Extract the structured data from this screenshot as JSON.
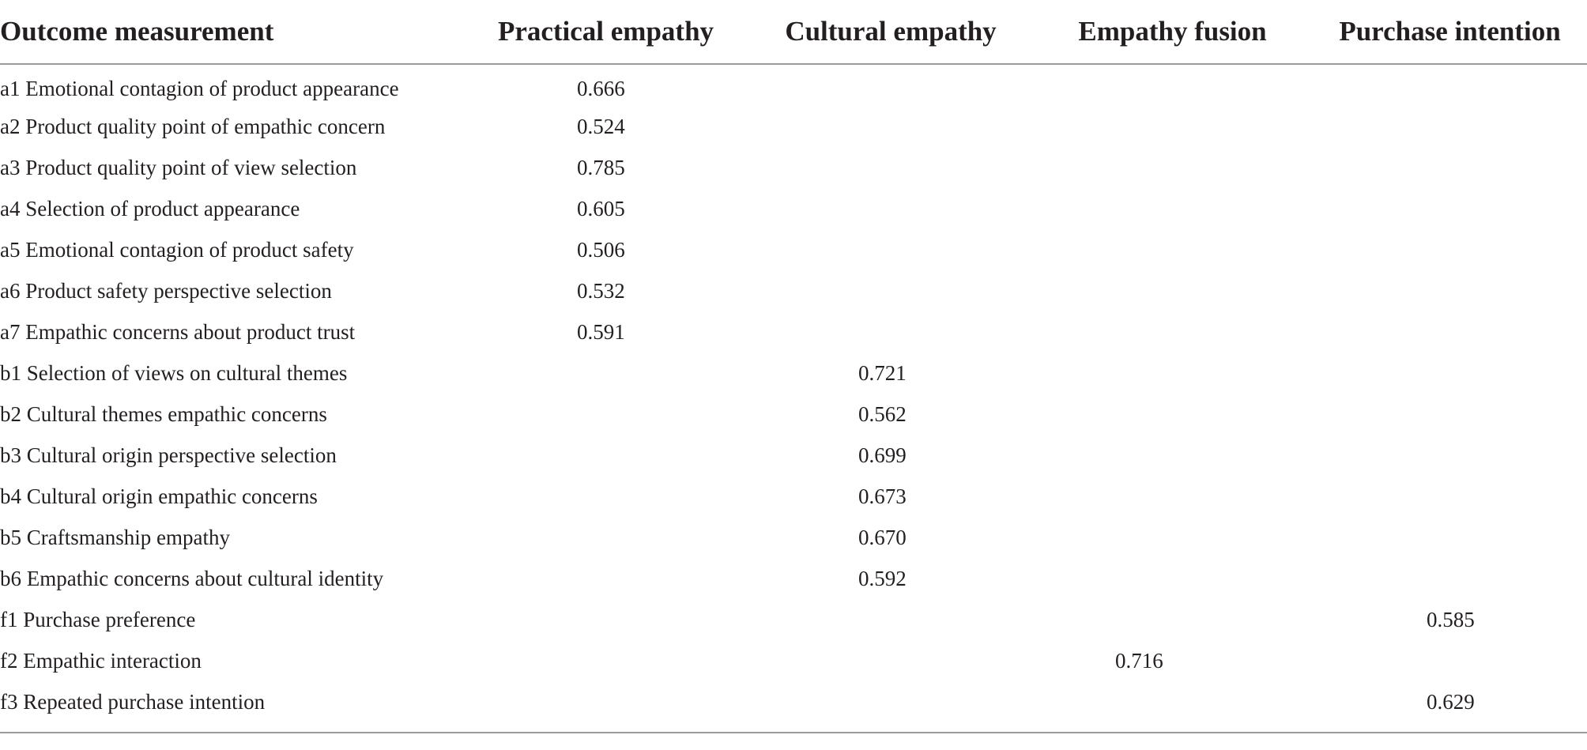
{
  "table": {
    "headers": [
      "Outcome measurement",
      "Practical empathy",
      "Cultural empathy",
      "Empathy fusion",
      "Purchase intention"
    ],
    "rows": [
      {
        "label": "a1 Emotional contagion of product appearance",
        "values": [
          "0.666",
          "",
          "",
          ""
        ]
      },
      {
        "label": "a2 Product quality point of empathic concern",
        "values": [
          "0.524",
          "",
          "",
          ""
        ]
      },
      {
        "label": "a3 Product quality point of view selection",
        "values": [
          "0.785",
          "",
          "",
          ""
        ]
      },
      {
        "label": "a4 Selection of product appearance",
        "values": [
          "0.605",
          "",
          "",
          ""
        ]
      },
      {
        "label": "a5 Emotional contagion of product safety",
        "values": [
          "0.506",
          "",
          "",
          ""
        ]
      },
      {
        "label": "a6 Product safety perspective selection",
        "values": [
          "0.532",
          "",
          "",
          ""
        ]
      },
      {
        "label": "a7 Empathic concerns about product trust",
        "values": [
          "0.591",
          "",
          "",
          ""
        ]
      },
      {
        "label": "b1 Selection of views on cultural themes",
        "values": [
          "",
          "0.721",
          "",
          ""
        ]
      },
      {
        "label": "b2 Cultural themes empathic concerns",
        "values": [
          "",
          "0.562",
          "",
          ""
        ]
      },
      {
        "label": "b3 Cultural origin perspective selection",
        "values": [
          "",
          "0.699",
          "",
          ""
        ]
      },
      {
        "label": "b4 Cultural origin empathic concerns",
        "values": [
          "",
          "0.673",
          "",
          ""
        ]
      },
      {
        "label": "b5 Craftsmanship empathy",
        "values": [
          "",
          "0.670",
          "",
          ""
        ]
      },
      {
        "label": "b6 Empathic concerns about cultural identity",
        "values": [
          "",
          "0.592",
          "",
          ""
        ]
      },
      {
        "label": "f1 Purchase preference",
        "values": [
          "",
          "",
          "",
          "0.585"
        ]
      },
      {
        "label": "f2 Empathic interaction",
        "values": [
          "",
          "",
          "0.716",
          ""
        ]
      },
      {
        "label": "f3 Repeated purchase intention",
        "values": [
          "",
          "",
          "",
          "0.629"
        ]
      }
    ]
  }
}
